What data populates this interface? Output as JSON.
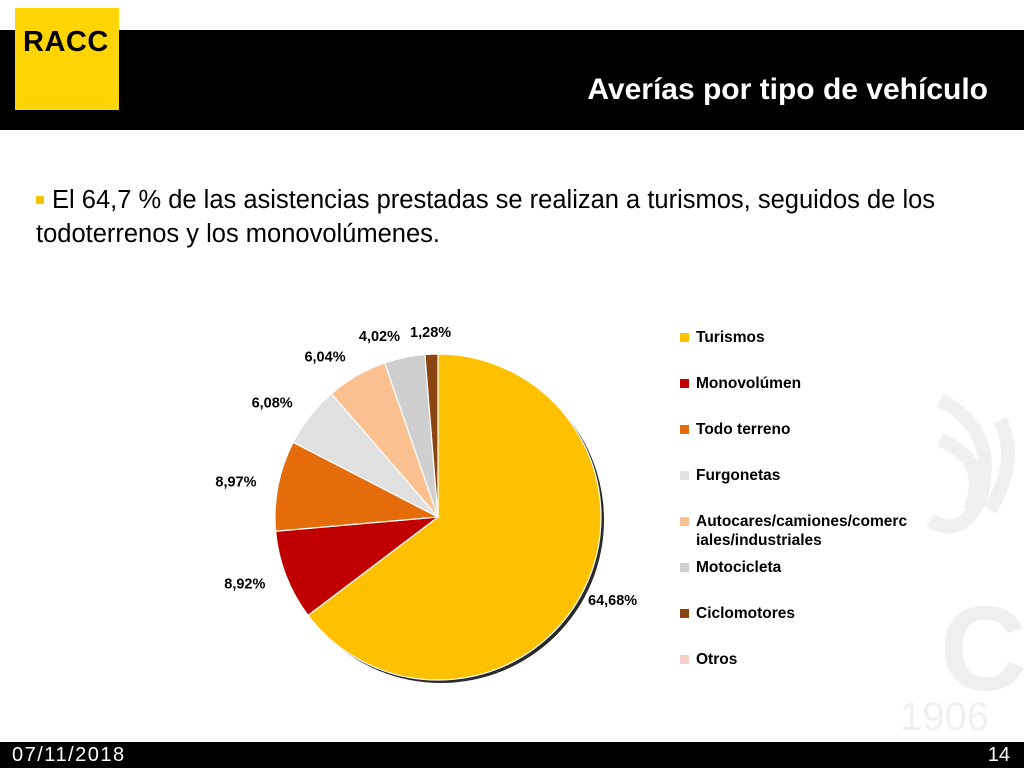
{
  "logo": {
    "text": "RACC"
  },
  "title": "Averías por tipo de vehículo",
  "bullet": "El 64,7 % de las asistencias prestadas se realizan a turismos, seguidos de los todoterrenos y los monovolúmenes.",
  "watermark": {
    "text": "1906"
  },
  "chart_data": {
    "type": "pie",
    "title": "",
    "legend_position": "right",
    "series": [
      {
        "name": "Turismos",
        "value": 64.68,
        "label": "64,68%",
        "color": "#ffc000"
      },
      {
        "name": "Monovolúmen",
        "value": 8.92,
        "label": "8,92%",
        "color": "#c00000"
      },
      {
        "name": "Todo terreno",
        "value": 8.97,
        "label": "8,97%",
        "color": "#e46c0a"
      },
      {
        "name": "Furgonetas",
        "value": 6.08,
        "label": "6,08%",
        "color": "#e0e0e0"
      },
      {
        "name": "Autocares/camiones/comerc iales/industriales",
        "value": 6.04,
        "label": "6,04%",
        "color": "#fac090"
      },
      {
        "name": "Motocicleta",
        "value": 4.02,
        "label": "4,02%",
        "color": "#cfcfcf"
      },
      {
        "name": "Ciclomotores",
        "value": 1.28,
        "label": "1,28%",
        "color": "#8b4513"
      },
      {
        "name": "Otros",
        "value": 0,
        "label": "",
        "color": "#f8d0c8"
      }
    ]
  },
  "footer": {
    "date": "07/11/2018",
    "page": "14"
  }
}
